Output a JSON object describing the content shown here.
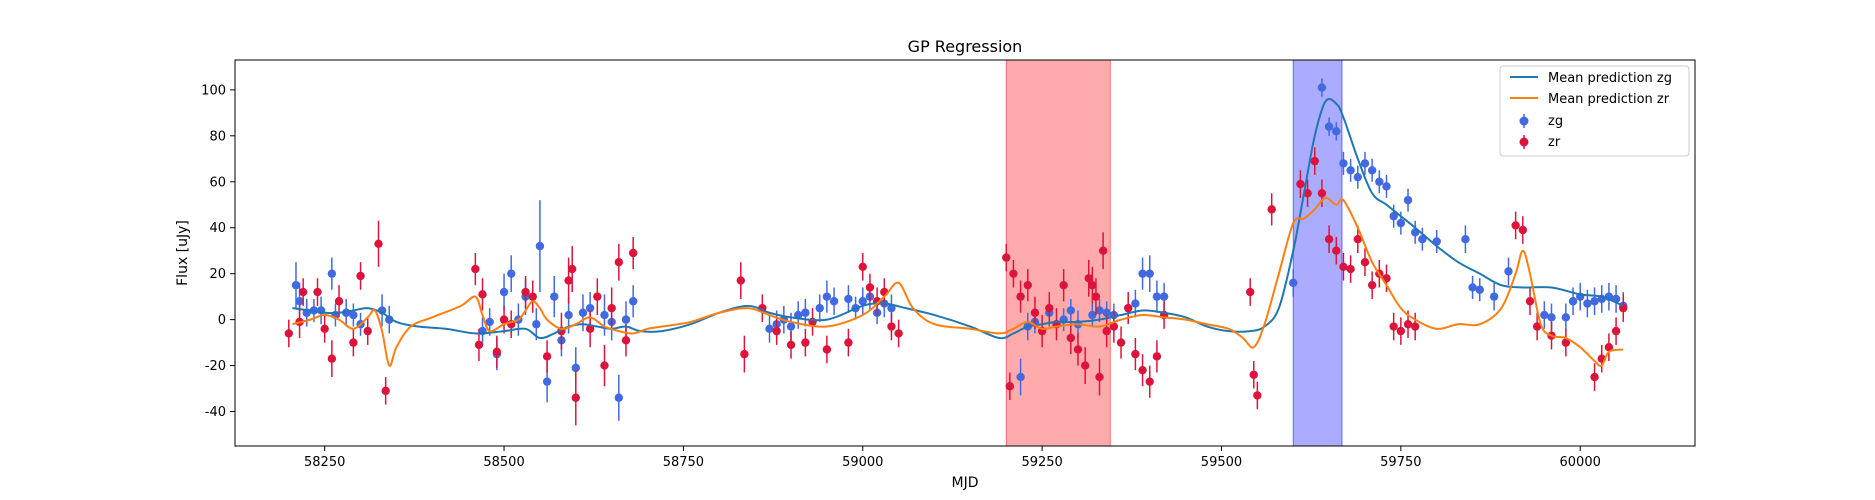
{
  "chart_data": {
    "type": "scatter",
    "title": "GP Regression",
    "xlabel": "MJD",
    "ylabel": "Flux [uJy]",
    "xlim": [
      58125,
      60160
    ],
    "ylim": [
      -55,
      113
    ],
    "xticks": [
      58250,
      58500,
      58750,
      59000,
      59250,
      59500,
      59750,
      60000
    ],
    "yticks": [
      -40,
      -20,
      0,
      20,
      40,
      60,
      80,
      100
    ],
    "legend_position": "top-right",
    "shaded_regions": [
      {
        "x0": 59200,
        "x1": 59345,
        "color": "#ff0000",
        "opacity": 0.33
      },
      {
        "x0": 59600,
        "x1": 59668,
        "color": "#0000ff",
        "opacity": 0.33
      }
    ],
    "lines": [
      {
        "name": "Mean prediction zg",
        "color": "#1f77b4",
        "x": [
          58205,
          58230,
          58250,
          58270,
          58290,
          58310,
          58330,
          58350,
          58380,
          58420,
          58460,
          58500,
          58530,
          58550,
          58570,
          58590,
          58610,
          58630,
          58650,
          58670,
          58690,
          58720,
          58760,
          58800,
          58840,
          58870,
          58900,
          58950,
          59000,
          59030,
          59060,
          59100,
          59150,
          59190,
          59210,
          59230,
          59250,
          59270,
          59300,
          59330,
          59360,
          59390,
          59420,
          59450,
          59480,
          59510,
          59540,
          59560,
          59580,
          59600,
          59615,
          59630,
          59645,
          59660,
          59670,
          59690,
          59710,
          59730,
          59750,
          59770,
          59800,
          59830,
          59860,
          59890,
          59920,
          59960,
          60000,
          60030,
          60060
        ],
        "y": [
          5,
          4,
          3,
          3,
          4,
          5,
          3,
          -1,
          -3,
          -4,
          -6,
          -5,
          -4,
          -8,
          -6,
          -3,
          -2,
          -3,
          -4,
          -3,
          -5,
          -5,
          -2,
          3,
          6,
          3,
          1,
          0,
          6,
          7,
          5,
          2,
          -3,
          -8,
          -6,
          -3,
          -2,
          -1,
          -1,
          0,
          2,
          4,
          3,
          1,
          -3,
          -5,
          -5,
          -3,
          5,
          30,
          55,
          80,
          95,
          94,
          88,
          70,
          55,
          50,
          45,
          40,
          32,
          25,
          20,
          15,
          14,
          14,
          11,
          10,
          6
        ]
      },
      {
        "name": "Mean prediction zr",
        "color": "#ff7f0e",
        "x": [
          58205,
          58230,
          58250,
          58270,
          58290,
          58310,
          58320,
          58330,
          58340,
          58350,
          58370,
          58400,
          58440,
          58460,
          58470,
          58480,
          58500,
          58520,
          58530,
          58540,
          58550,
          58560,
          58580,
          58600,
          58620,
          58640,
          58660,
          58680,
          58700,
          58720,
          58760,
          58800,
          58840,
          58870,
          58900,
          58950,
          59000,
          59030,
          59050,
          59070,
          59100,
          59150,
          59190,
          59210,
          59230,
          59250,
          59270,
          59300,
          59330,
          59360,
          59390,
          59420,
          59450,
          59480,
          59510,
          59530,
          59545,
          59560,
          59580,
          59600,
          59615,
          59630,
          59645,
          59660,
          59670,
          59690,
          59710,
          59730,
          59750,
          59770,
          59800,
          59830,
          59860,
          59890,
          59910,
          59920,
          59930,
          59945,
          59960,
          59980,
          60000,
          60020,
          60030,
          60040,
          60060
        ],
        "y": [
          -2,
          0,
          2,
          0,
          -4,
          1,
          4,
          -5,
          -20,
          -12,
          -3,
          1,
          6,
          10,
          2,
          -5,
          -2,
          0,
          4,
          8,
          5,
          0,
          -4,
          -2,
          1,
          -3,
          -5,
          -6,
          -4,
          -3,
          -1,
          3,
          5,
          2,
          -1,
          -3,
          2,
          10,
          16,
          5,
          -2,
          -4,
          -6,
          -4,
          -1,
          -4,
          -3,
          -2,
          -3,
          0,
          2,
          1,
          0,
          -2,
          -4,
          -8,
          -12,
          -2,
          20,
          42,
          44,
          48,
          53,
          50,
          52,
          40,
          25,
          15,
          5,
          0,
          -4,
          -2,
          -2,
          5,
          20,
          30,
          20,
          -2,
          -7,
          -8,
          -12,
          -18,
          -20,
          -14,
          -13
        ]
      }
    ],
    "series": [
      {
        "name": "zg",
        "color": "#4169e1",
        "x": [
          58210,
          58215,
          58225,
          58235,
          58245,
          58260,
          58265,
          58280,
          58290,
          58300,
          58330,
          58340,
          58470,
          58480,
          58490,
          58500,
          58510,
          58520,
          58530,
          58545,
          58550,
          58560,
          58570,
          58580,
          58590,
          58600,
          58610,
          58620,
          58640,
          58650,
          58660,
          58670,
          58680,
          58870,
          58880,
          58890,
          58900,
          58910,
          58920,
          58940,
          58950,
          58960,
          58980,
          58990,
          59000,
          59010,
          59020,
          59030,
          59040,
          59220,
          59230,
          59240,
          59260,
          59280,
          59290,
          59300,
          59320,
          59330,
          59340,
          59350,
          59370,
          59380,
          59390,
          59400,
          59410,
          59420,
          59600,
          59640,
          59650,
          59660,
          59670,
          59680,
          59690,
          59700,
          59710,
          59720,
          59730,
          59740,
          59750,
          59760,
          59770,
          59780,
          59800,
          59840,
          59850,
          59860,
          59880,
          59900,
          59950,
          59960,
          59980,
          59990,
          60000,
          60010,
          60020,
          60030,
          60040,
          60050,
          60060
        ],
        "y": [
          15,
          8,
          3,
          4,
          4,
          20,
          2,
          3,
          2,
          -2,
          4,
          0,
          -5,
          -1,
          -15,
          12,
          20,
          0,
          10,
          -2,
          32,
          -27,
          10,
          -9,
          2,
          -21,
          3,
          5,
          2,
          -1,
          -34,
          0,
          8,
          -4,
          -2,
          0,
          -3,
          2,
          3,
          5,
          10,
          8,
          9,
          5,
          8,
          10,
          3,
          7,
          5,
          -25,
          -3,
          -1,
          3,
          0,
          4,
          -2,
          2,
          4,
          3,
          2,
          5,
          7,
          20,
          20,
          10,
          10,
          16,
          101,
          84,
          82,
          68,
          65,
          62,
          68,
          65,
          60,
          58,
          45,
          42,
          52,
          38,
          35,
          34,
          35,
          14,
          13,
          10,
          21,
          2,
          1,
          1,
          8,
          10,
          7,
          8,
          9,
          10,
          9,
          6
        ],
        "err": [
          10,
          8,
          6,
          5,
          6,
          7,
          5,
          6,
          5,
          5,
          7,
          6,
          6,
          6,
          7,
          8,
          8,
          7,
          8,
          7,
          20,
          9,
          9,
          7,
          8,
          9,
          8,
          7,
          9,
          8,
          10,
          8,
          7,
          6,
          6,
          6,
          6,
          6,
          6,
          6,
          7,
          6,
          6,
          5,
          6,
          6,
          5,
          6,
          6,
          8,
          6,
          5,
          6,
          5,
          5,
          6,
          5,
          5,
          5,
          5,
          6,
          6,
          7,
          8,
          7,
          6,
          6,
          4,
          4,
          4,
          5,
          5,
          5,
          5,
          5,
          5,
          5,
          5,
          5,
          5,
          5,
          5,
          5,
          6,
          5,
          5,
          6,
          6,
          6,
          6,
          6,
          6,
          6,
          6,
          6,
          6,
          6,
          6,
          6
        ]
      },
      {
        "name": "zr",
        "color": "#dc143c",
        "x": [
          58200,
          58215,
          58220,
          58240,
          58250,
          58260,
          58270,
          58290,
          58300,
          58310,
          58325,
          58335,
          58460,
          58465,
          58470,
          58490,
          58500,
          58510,
          58530,
          58540,
          58560,
          58580,
          58590,
          58595,
          58600,
          58620,
          58630,
          58640,
          58650,
          58660,
          58670,
          58680,
          58830,
          58835,
          58860,
          58880,
          58900,
          58920,
          58930,
          58950,
          58980,
          59000,
          59010,
          59020,
          59030,
          59040,
          59050,
          59200,
          59205,
          59210,
          59220,
          59230,
          59240,
          59250,
          59260,
          59270,
          59280,
          59290,
          59300,
          59310,
          59315,
          59320,
          59325,
          59330,
          59335,
          59340,
          59350,
          59360,
          59370,
          59380,
          59390,
          59400,
          59410,
          59420,
          59540,
          59545,
          59550,
          59570,
          59610,
          59620,
          59630,
          59640,
          59650,
          59660,
          59670,
          59680,
          59690,
          59700,
          59710,
          59720,
          59730,
          59740,
          59750,
          59760,
          59770,
          59910,
          59920,
          59930,
          59940,
          59960,
          59980,
          60020,
          60030,
          60040,
          60050,
          60060
        ],
        "y": [
          -6,
          -1,
          12,
          12,
          -4,
          -17,
          8,
          -10,
          19,
          -5,
          33,
          -31,
          22,
          -11,
          11,
          -14,
          0,
          -2,
          12,
          10,
          -16,
          -5,
          17,
          22,
          -34,
          -4,
          10,
          -20,
          5,
          25,
          -9,
          29,
          17,
          -15,
          5,
          -5,
          -11,
          -10,
          -1,
          -13,
          -10,
          23,
          14,
          8,
          12,
          -3,
          -6,
          27,
          -29,
          20,
          10,
          15,
          3,
          -5,
          5,
          -2,
          15,
          -8,
          -13,
          -20,
          18,
          15,
          10,
          -25,
          30,
          -5,
          -3,
          -10,
          5,
          -15,
          -22,
          -27,
          -16,
          2,
          12,
          -24,
          -33,
          48,
          59,
          55,
          69,
          55,
          35,
          30,
          23,
          22,
          35,
          25,
          15,
          20,
          18,
          -3,
          -5,
          -2,
          -3,
          41,
          39,
          8,
          -3,
          -7,
          -10,
          -25,
          -17,
          -12,
          -5,
          5
        ],
        "err": [
          6,
          7,
          6,
          6,
          6,
          8,
          7,
          6,
          6,
          6,
          10,
          6,
          7,
          7,
          7,
          7,
          6,
          6,
          7,
          7,
          7,
          8,
          10,
          10,
          12,
          8,
          8,
          9,
          9,
          8,
          7,
          7,
          8,
          8,
          6,
          6,
          6,
          6,
          6,
          6,
          6,
          6,
          6,
          6,
          6,
          6,
          6,
          6,
          6,
          6,
          7,
          7,
          7,
          7,
          7,
          7,
          7,
          7,
          7,
          8,
          8,
          8,
          8,
          8,
          8,
          7,
          7,
          7,
          7,
          7,
          7,
          7,
          7,
          6,
          6,
          6,
          6,
          7,
          6,
          6,
          6,
          6,
          6,
          6,
          6,
          6,
          6,
          6,
          6,
          6,
          6,
          6,
          6,
          6,
          6,
          6,
          6,
          6,
          6,
          6,
          6,
          6,
          6,
          6,
          6,
          6
        ]
      }
    ]
  }
}
